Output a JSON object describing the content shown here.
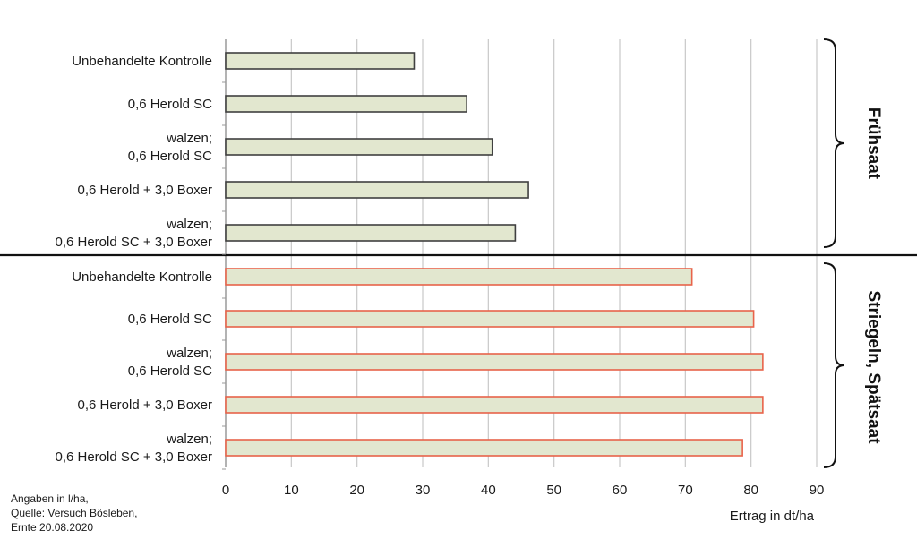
{
  "chart_data": {
    "type": "bar",
    "orientation": "horizontal",
    "xlabel": "Ertrag in dt/ha",
    "xlim": [
      0,
      90
    ],
    "xticks": [
      0,
      10,
      20,
      30,
      40,
      50,
      60,
      70,
      80,
      90
    ],
    "grid": true,
    "groups": [
      {
        "name": "Frühsaat",
        "bar_fill": "#e2e7cf",
        "bar_stroke": "#404040",
        "categories": [
          [
            "Unbehandelte Kontrolle"
          ],
          [
            "0,6 Herold SC"
          ],
          [
            "walzen;",
            "0,6 Herold SC"
          ],
          [
            "0,6 Herold + 3,0 Boxer"
          ],
          [
            "walzen;",
            "0,6 Herold SC + 3,0 Boxer"
          ]
        ],
        "values": [
          28.7,
          36.7,
          40.6,
          46.1,
          44.1
        ]
      },
      {
        "name": "Striegeln, Spätsaat",
        "bar_fill": "#e2e7cf",
        "bar_stroke": "#e8634a",
        "categories": [
          [
            "Unbehandelte Kontrolle"
          ],
          [
            "0,6 Herold SC"
          ],
          [
            "walzen;",
            "0,6 Herold SC"
          ],
          [
            "0,6 Herold + 3,0 Boxer"
          ],
          [
            "walzen;",
            "0,6 Herold SC + 3,0 Boxer"
          ]
        ],
        "values": [
          71.0,
          80.4,
          81.8,
          81.8,
          78.7
        ]
      }
    ]
  },
  "note": {
    "line1": "Angaben in l/ha,",
    "line2": "Quelle: Versuch Bösleben,",
    "line3": "Ernte  20.08.2020"
  }
}
